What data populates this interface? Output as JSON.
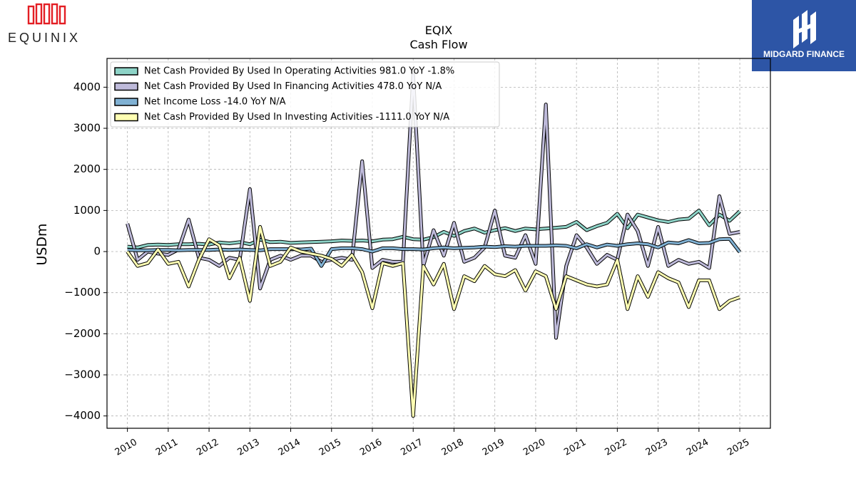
{
  "brand": {
    "left_logo_text": "EQUINIX",
    "right_logo_text": "MIDGARD FINANCE",
    "right_logo_bg": "#2d55a6",
    "left_logo_color": "#e31e24"
  },
  "chart_data": {
    "type": "line",
    "title": "EQIX",
    "subtitle": "Cash Flow",
    "ylabel": "USDm",
    "xlabel": "",
    "ylim": [
      -4300,
      4700
    ],
    "xlim": [
      2009.5,
      2025.75
    ],
    "yticks": [
      -4000,
      -3000,
      -2000,
      -1000,
      0,
      1000,
      2000,
      3000,
      4000
    ],
    "xticks": [
      "2010",
      "2011",
      "2012",
      "2013",
      "2014",
      "2015",
      "2016",
      "2017",
      "2018",
      "2019",
      "2020",
      "2021",
      "2022",
      "2023",
      "2024",
      "2025"
    ],
    "grid": true,
    "legend_position": "top-left",
    "series": [
      {
        "name": "Net Cash Provided By Used In Operating Activities",
        "legend_label": "Net Cash Provided By Used In Operating Activities  981.0 YoY -1.8%",
        "color": "#8dd3c7",
        "x": [
          "2010-03",
          "2010-06",
          "2010-09",
          "2010-12",
          "2011-03",
          "2011-06",
          "2011-09",
          "2011-12",
          "2012-03",
          "2012-06",
          "2012-09",
          "2012-12",
          "2013-03",
          "2013-06",
          "2013-09",
          "2013-12",
          "2014-03",
          "2014-06",
          "2014-09",
          "2014-12",
          "2015-03",
          "2015-06",
          "2015-09",
          "2015-12",
          "2016-03",
          "2016-06",
          "2016-09",
          "2016-12",
          "2017-03",
          "2017-06",
          "2017-09",
          "2017-12",
          "2018-03",
          "2018-06",
          "2018-09",
          "2018-12",
          "2019-03",
          "2019-06",
          "2019-09",
          "2019-12",
          "2020-03",
          "2020-06",
          "2020-09",
          "2020-12",
          "2021-03",
          "2021-06",
          "2021-09",
          "2021-12",
          "2022-03",
          "2022-06",
          "2022-09",
          "2022-12",
          "2023-03",
          "2023-06",
          "2023-09",
          "2023-12",
          "2024-03",
          "2024-06",
          "2024-09",
          "2024-12",
          "2025-03"
        ],
        "values": [
          120,
          100,
          160,
          170,
          160,
          180,
          180,
          190,
          170,
          220,
          200,
          230,
          180,
          290,
          230,
          240,
          210,
          220,
          230,
          240,
          250,
          270,
          260,
          270,
          250,
          290,
          300,
          360,
          300,
          290,
          350,
          480,
          380,
          500,
          560,
          460,
          520,
          570,
          500,
          560,
          540,
          560,
          580,
          600,
          720,
          520,
          620,
          700,
          920,
          570,
          900,
          830,
          760,
          720,
          780,
          800,
          1000,
          640,
          900,
          750,
          981
        ]
      },
      {
        "name": "Net Cash Provided By Used In Financing Activities",
        "legend_label": "Net Cash Provided By Used In Financing Activities  478.0 YoY N/A",
        "color": "#bebada",
        "x": [
          "2010-03",
          "2010-06",
          "2010-09",
          "2010-12",
          "2011-03",
          "2011-06",
          "2011-09",
          "2011-12",
          "2012-03",
          "2012-06",
          "2012-09",
          "2012-12",
          "2013-03",
          "2013-06",
          "2013-09",
          "2013-12",
          "2014-03",
          "2014-06",
          "2014-09",
          "2014-12",
          "2015-03",
          "2015-06",
          "2015-09",
          "2015-12",
          "2016-03",
          "2016-06",
          "2016-09",
          "2016-12",
          "2017-03",
          "2017-06",
          "2017-09",
          "2017-12",
          "2018-03",
          "2018-06",
          "2018-09",
          "2018-12",
          "2019-03",
          "2019-06",
          "2019-09",
          "2019-12",
          "2020-03",
          "2020-06",
          "2020-09",
          "2020-12",
          "2021-03",
          "2021-06",
          "2021-09",
          "2021-12",
          "2022-03",
          "2022-06",
          "2022-09",
          "2022-12",
          "2023-03",
          "2023-06",
          "2023-09",
          "2023-12",
          "2024-03",
          "2024-06",
          "2024-09",
          "2024-12",
          "2025-03"
        ],
        "values": [
          680,
          -200,
          0,
          -50,
          -80,
          50,
          780,
          -150,
          -200,
          -350,
          -150,
          -200,
          1520,
          -900,
          -200,
          -100,
          -200,
          -100,
          -100,
          -250,
          -200,
          -150,
          -200,
          2200,
          -400,
          -200,
          -250,
          -250,
          4300,
          -350,
          520,
          -100,
          700,
          -250,
          -150,
          100,
          1000,
          -100,
          -150,
          400,
          -300,
          3580,
          -2100,
          -350,
          400,
          100,
          -300,
          -80,
          -200,
          900,
          500,
          -350,
          600,
          -350,
          -200,
          -300,
          -250,
          -400,
          1350,
          430,
          478
        ]
      },
      {
        "name": "Net Income Loss",
        "legend_label": "Net Income Loss  -14.0 YoY N/A",
        "color": "#80b1d3",
        "x": [
          "2010-03",
          "2010-06",
          "2010-09",
          "2010-12",
          "2011-03",
          "2011-06",
          "2011-09",
          "2011-12",
          "2012-03",
          "2012-06",
          "2012-09",
          "2012-12",
          "2013-03",
          "2013-06",
          "2013-09",
          "2013-12",
          "2014-03",
          "2014-06",
          "2014-09",
          "2014-12",
          "2015-03",
          "2015-06",
          "2015-09",
          "2015-12",
          "2016-03",
          "2016-06",
          "2016-09",
          "2016-12",
          "2017-03",
          "2017-06",
          "2017-09",
          "2017-12",
          "2018-03",
          "2018-06",
          "2018-09",
          "2018-12",
          "2019-03",
          "2019-06",
          "2019-09",
          "2019-12",
          "2020-03",
          "2020-06",
          "2020-09",
          "2020-12",
          "2021-03",
          "2021-06",
          "2021-09",
          "2021-12",
          "2022-03",
          "2022-06",
          "2022-09",
          "2022-12",
          "2023-03",
          "2023-06",
          "2023-09",
          "2023-12",
          "2024-03",
          "2024-06",
          "2024-09",
          "2024-12",
          "2025-03"
        ],
        "values": [
          40,
          30,
          30,
          40,
          40,
          30,
          40,
          40,
          40,
          50,
          40,
          50,
          40,
          30,
          60,
          60,
          60,
          50,
          70,
          -350,
          60,
          80,
          80,
          60,
          0,
          80,
          80,
          60,
          60,
          50,
          80,
          100,
          80,
          90,
          100,
          120,
          110,
          130,
          120,
          140,
          140,
          140,
          150,
          140,
          80,
          180,
          100,
          170,
          140,
          180,
          200,
          180,
          100,
          220,
          200,
          280,
          200,
          210,
          300,
          310,
          -14
        ]
      },
      {
        "name": "Net Cash Provided By Used In Investing Activities",
        "legend_label": "Net Cash Provided By Used In Investing Activities  -1111.0 YoY N/A",
        "color": "#ffffb3",
        "x": [
          "2010-03",
          "2010-06",
          "2010-09",
          "2010-12",
          "2011-03",
          "2011-06",
          "2011-09",
          "2011-12",
          "2012-03",
          "2012-06",
          "2012-09",
          "2012-12",
          "2013-03",
          "2013-06",
          "2013-09",
          "2013-12",
          "2014-03",
          "2014-06",
          "2014-09",
          "2014-12",
          "2015-03",
          "2015-06",
          "2015-09",
          "2015-12",
          "2016-03",
          "2016-06",
          "2016-09",
          "2016-12",
          "2017-03",
          "2017-06",
          "2017-09",
          "2017-12",
          "2018-03",
          "2018-06",
          "2018-09",
          "2018-12",
          "2019-03",
          "2019-06",
          "2019-09",
          "2019-12",
          "2020-03",
          "2020-06",
          "2020-09",
          "2020-12",
          "2021-03",
          "2021-06",
          "2021-09",
          "2021-12",
          "2022-03",
          "2022-06",
          "2022-09",
          "2022-12",
          "2023-03",
          "2023-06",
          "2023-09",
          "2023-12",
          "2024-03",
          "2024-06",
          "2024-09",
          "2024-12",
          "2025-03"
        ],
        "values": [
          0,
          -350,
          -280,
          50,
          -300,
          -250,
          -850,
          -200,
          300,
          150,
          -650,
          -150,
          -1200,
          600,
          -350,
          -250,
          100,
          0,
          -50,
          -100,
          -180,
          -350,
          -80,
          -500,
          -1380,
          -280,
          -350,
          -280,
          -4000,
          -350,
          -800,
          -300,
          -1400,
          -600,
          -720,
          -350,
          -550,
          -600,
          -450,
          -950,
          -480,
          -600,
          -1400,
          -600,
          -700,
          -800,
          -850,
          -800,
          -200,
          -1400,
          -600,
          -1100,
          -500,
          -650,
          -750,
          -1350,
          -700,
          -700,
          -1400,
          -1200,
          -1111
        ]
      }
    ]
  }
}
